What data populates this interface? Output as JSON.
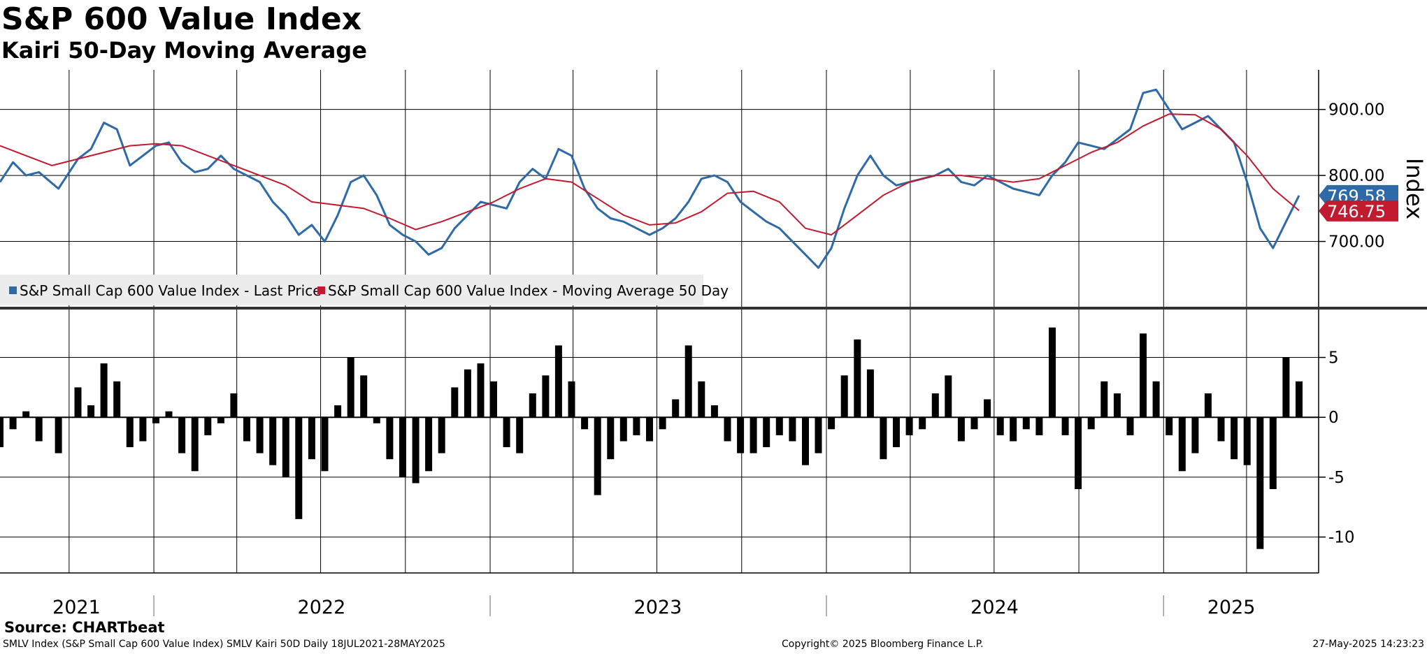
{
  "header": {
    "title": "S&P 600 Value Index",
    "subtitle": "Kairi 50-Day Moving Average"
  },
  "footer": {
    "source": "Source: CHARTbeat",
    "description": "SMLV Index (S&P Small Cap 600 Value Index) SMLV Kairi 50D  Daily 18JUL2021-28MAY2025",
    "copyright": "Copyright© 2025 Bloomberg Finance L.P.",
    "timestamp": "27-May-2025 14:23:23"
  },
  "colors": {
    "price": "#2e6aa8",
    "moving_average": "#c21a2e",
    "kairi_bars": "#000000",
    "grid": "#000000"
  },
  "chart_data": [
    {
      "type": "line",
      "title": "S&P 600 Value Index",
      "ylabel": "Index",
      "ylim": [
        600,
        960
      ],
      "yticks": [
        700,
        800,
        900
      ],
      "ytick_labels": [
        "700.00",
        "800.00",
        "900.00"
      ],
      "x_range": [
        "2021-07-18",
        "2025-05-28"
      ],
      "x_years": [
        {
          "label": "2021",
          "start": "2021-07-18",
          "end": "2021-12-31"
        },
        {
          "label": "2022",
          "start": "2022-01-01",
          "end": "2022-12-31"
        },
        {
          "label": "2023",
          "start": "2023-01-01",
          "end": "2023-12-31"
        },
        {
          "label": "2024",
          "start": "2024-01-01",
          "end": "2024-12-31"
        },
        {
          "label": "2025",
          "start": "2025-01-01",
          "end": "2025-05-28"
        }
      ],
      "last_values": [
        {
          "series": "S&P Small Cap 600 Value Index - Last Price",
          "label": "769.58"
        },
        {
          "series": "S&P Small Cap 600 Value Index - Moving Average 50 Day",
          "label": "746.75"
        }
      ],
      "series": [
        {
          "name": "S&P Small Cap 600 Value Index - Last Price",
          "color": "#2e6aa8",
          "x": [
            0.0,
            0.01,
            0.02,
            0.03,
            0.045,
            0.06,
            0.07,
            0.08,
            0.09,
            0.1,
            0.11,
            0.12,
            0.13,
            0.14,
            0.15,
            0.16,
            0.17,
            0.18,
            0.19,
            0.2,
            0.21,
            0.22,
            0.23,
            0.24,
            0.25,
            0.26,
            0.27,
            0.28,
            0.29,
            0.3,
            0.31,
            0.32,
            0.33,
            0.34,
            0.35,
            0.36,
            0.37,
            0.38,
            0.39,
            0.4,
            0.41,
            0.42,
            0.43,
            0.44,
            0.45,
            0.46,
            0.47,
            0.48,
            0.49,
            0.5,
            0.51,
            0.52,
            0.53,
            0.54,
            0.55,
            0.56,
            0.57,
            0.58,
            0.59,
            0.6,
            0.61,
            0.62,
            0.63,
            0.64,
            0.65,
            0.66,
            0.67,
            0.68,
            0.69,
            0.7,
            0.71,
            0.72,
            0.73,
            0.74,
            0.75,
            0.76,
            0.77,
            0.78,
            0.79,
            0.8,
            0.81,
            0.82,
            0.83,
            0.84,
            0.85,
            0.86,
            0.87,
            0.88,
            0.89,
            0.9,
            0.91,
            0.92,
            0.93,
            0.94,
            0.95,
            0.96,
            0.97,
            0.98,
            0.99,
            1.0
          ],
          "values": [
            790,
            820,
            800,
            805,
            780,
            825,
            840,
            880,
            870,
            815,
            830,
            845,
            850,
            820,
            805,
            810,
            830,
            810,
            800,
            790,
            760,
            740,
            710,
            725,
            700,
            740,
            790,
            800,
            770,
            725,
            710,
            700,
            680,
            690,
            720,
            740,
            760,
            755,
            750,
            790,
            810,
            795,
            840,
            830,
            780,
            750,
            735,
            730,
            720,
            710,
            720,
            735,
            760,
            795,
            800,
            790,
            760,
            745,
            730,
            720,
            700,
            680,
            660,
            690,
            750,
            800,
            830,
            800,
            785,
            790,
            795,
            800,
            810,
            790,
            785,
            800,
            790,
            780,
            775,
            770,
            800,
            820,
            850,
            845,
            840,
            855,
            870,
            925,
            930,
            900,
            870,
            880,
            890,
            870,
            850,
            790,
            720,
            690,
            730,
            769.58
          ]
        },
        {
          "name": "S&P Small Cap 600 Value Index - Moving Average 50 Day",
          "color": "#c21a2e",
          "x": [
            0.0,
            0.02,
            0.04,
            0.06,
            0.08,
            0.1,
            0.12,
            0.14,
            0.16,
            0.18,
            0.2,
            0.22,
            0.24,
            0.26,
            0.28,
            0.3,
            0.32,
            0.34,
            0.36,
            0.38,
            0.4,
            0.42,
            0.44,
            0.46,
            0.48,
            0.5,
            0.52,
            0.54,
            0.56,
            0.58,
            0.6,
            0.62,
            0.64,
            0.66,
            0.68,
            0.7,
            0.72,
            0.74,
            0.76,
            0.78,
            0.8,
            0.82,
            0.84,
            0.86,
            0.88,
            0.9,
            0.92,
            0.94,
            0.96,
            0.98,
            1.0
          ],
          "values": [
            845,
            830,
            815,
            825,
            835,
            845,
            848,
            845,
            830,
            815,
            800,
            785,
            760,
            755,
            750,
            735,
            718,
            730,
            745,
            760,
            780,
            795,
            790,
            765,
            740,
            725,
            728,
            745,
            773,
            776,
            760,
            720,
            710,
            740,
            770,
            790,
            800,
            800,
            795,
            790,
            795,
            815,
            835,
            850,
            875,
            893,
            892,
            870,
            830,
            780,
            746.75
          ]
        }
      ],
      "legend": [
        "S&P Small Cap 600 Value Index - Last Price",
        "S&P Small Cap 600 Value Index - Moving Average 50 Day"
      ],
      "legend_position": "bottom-left"
    },
    {
      "type": "bar",
      "title": "Kairi 50D",
      "ylim": [
        -13,
        9
      ],
      "yticks": [
        5,
        0,
        -5,
        -10
      ],
      "ytick_labels": [
        "5",
        "0",
        "-5",
        "-10"
      ],
      "x": [
        0.0,
        0.01,
        0.02,
        0.03,
        0.045,
        0.06,
        0.07,
        0.08,
        0.09,
        0.1,
        0.11,
        0.12,
        0.13,
        0.14,
        0.15,
        0.16,
        0.17,
        0.18,
        0.19,
        0.2,
        0.21,
        0.22,
        0.23,
        0.24,
        0.25,
        0.26,
        0.27,
        0.28,
        0.29,
        0.3,
        0.31,
        0.32,
        0.33,
        0.34,
        0.35,
        0.36,
        0.37,
        0.38,
        0.39,
        0.4,
        0.41,
        0.42,
        0.43,
        0.44,
        0.45,
        0.46,
        0.47,
        0.48,
        0.49,
        0.5,
        0.51,
        0.52,
        0.53,
        0.54,
        0.55,
        0.56,
        0.57,
        0.58,
        0.59,
        0.6,
        0.61,
        0.62,
        0.63,
        0.64,
        0.65,
        0.66,
        0.67,
        0.68,
        0.69,
        0.7,
        0.71,
        0.72,
        0.73,
        0.74,
        0.75,
        0.76,
        0.77,
        0.78,
        0.79,
        0.8,
        0.81,
        0.82,
        0.83,
        0.84,
        0.85,
        0.86,
        0.87,
        0.88,
        0.89,
        0.9,
        0.91,
        0.92,
        0.93,
        0.94,
        0.95,
        0.96,
        0.97,
        0.98,
        0.99,
        1.0
      ],
      "values": [
        -2.5,
        -1.0,
        0.5,
        -2.0,
        -3.0,
        2.5,
        1.0,
        4.5,
        3.0,
        -2.5,
        -2.0,
        -0.5,
        0.5,
        -3.0,
        -4.5,
        -1.5,
        -0.5,
        2.0,
        -2.0,
        -3.0,
        -4.0,
        -5.0,
        -8.5,
        -3.5,
        -4.5,
        1.0,
        5.0,
        3.5,
        -0.5,
        -3.5,
        -5.0,
        -5.5,
        -4.5,
        -3.0,
        2.5,
        4.0,
        4.5,
        3.0,
        -2.5,
        -3.0,
        2.0,
        3.5,
        6.0,
        3.0,
        -1.0,
        -6.5,
        -3.5,
        -2.0,
        -1.5,
        -2.0,
        -1.0,
        1.5,
        6.0,
        3.0,
        1.0,
        -2.0,
        -3.0,
        -3.0,
        -2.5,
        -1.5,
        -2.0,
        -4.0,
        -3.0,
        -1.0,
        3.5,
        6.5,
        4.0,
        -3.5,
        -2.5,
        -1.5,
        -1.0,
        2.0,
        3.5,
        -2.0,
        -1.0,
        1.5,
        -1.5,
        -2.0,
        -1.0,
        -1.5,
        7.5,
        -1.5,
        -6.0,
        -1.0,
        3.0,
        2.0,
        -1.5,
        7.0,
        3.0,
        -1.5,
        -4.5,
        -3.0,
        2.0,
        -2.0,
        -3.5,
        -4.0,
        -11.0,
        -6.0,
        5.0,
        3.0
      ]
    }
  ]
}
